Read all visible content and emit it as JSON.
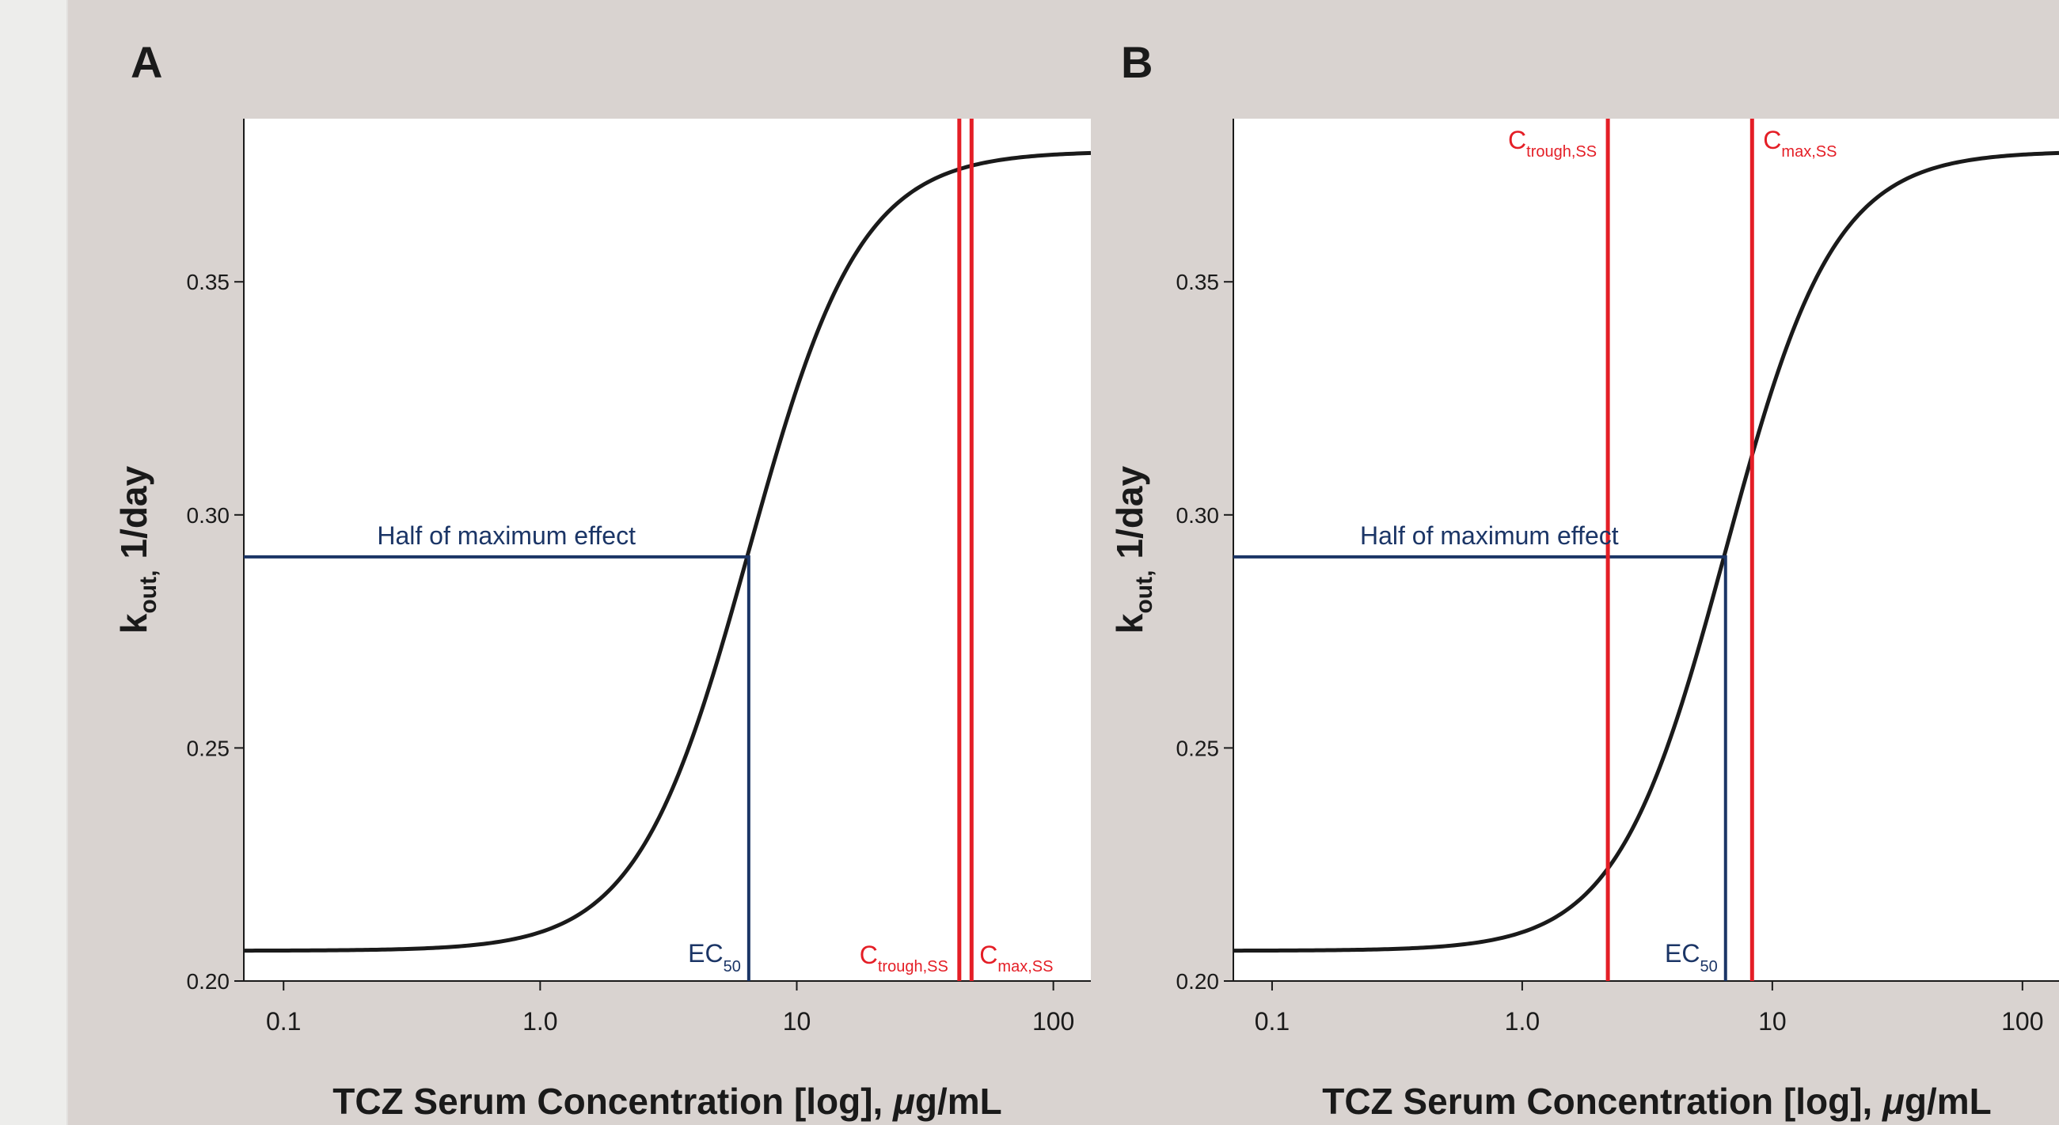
{
  "colors": {
    "curve": "#1a1a1a",
    "ec50_line": "#1b3566",
    "ss_lines": "#e41e26",
    "panel_background": "#d9d3d0"
  },
  "chart_data": [
    {
      "type": "line",
      "panel_label": "A",
      "title": "",
      "xlabel_prefix": "TCZ Serum Concentration [log], ",
      "xlabel_unit_mu": "μ",
      "xlabel_unit_rest": "g/mL",
      "ylabel_main": "k",
      "ylabel_sub": "out,",
      "ylabel_rest": "1/day",
      "x_scale": "log",
      "xlim": [
        0.07,
        140
      ],
      "ylim": [
        0.2,
        0.385
      ],
      "x_ticks": [
        0.1,
        1.0,
        10,
        100
      ],
      "x_tick_labels": [
        "0.1",
        "1.0",
        "10",
        "100"
      ],
      "y_ticks": [
        0.2,
        0.25,
        0.3,
        0.35
      ],
      "y_tick_labels": [
        "0.20",
        "0.25",
        "0.30",
        "0.35"
      ],
      "curve": {
        "E0": 0.2065,
        "Emax": 0.378,
        "EC50": 6.5,
        "hill": 2.0
      },
      "half_max_label": "Half of maximum effect",
      "ec50_label_main": "EC",
      "ec50_label_sub": "50",
      "ec50_value": 6.5,
      "half_max_y": 0.291,
      "ss_lines": [
        {
          "x": 43,
          "label_main": "C",
          "label_sub": "trough,SS",
          "label_pos": "bottom-left"
        },
        {
          "x": 48,
          "label_main": "C",
          "label_sub": "max,SS",
          "label_pos": "bottom-right"
        }
      ]
    },
    {
      "type": "line",
      "panel_label": "B",
      "title": "",
      "xlabel_prefix": "TCZ Serum Concentration [log], ",
      "xlabel_unit_mu": "μ",
      "xlabel_unit_rest": "g/mL",
      "ylabel_main": "k",
      "ylabel_sub": "out,",
      "ylabel_rest": "1/day",
      "x_scale": "log",
      "xlim": [
        0.07,
        140
      ],
      "ylim": [
        0.2,
        0.385
      ],
      "x_ticks": [
        0.1,
        1.0,
        10,
        100
      ],
      "x_tick_labels": [
        "0.1",
        "1.0",
        "10",
        "100"
      ],
      "y_ticks": [
        0.2,
        0.25,
        0.3,
        0.35
      ],
      "y_tick_labels": [
        "0.20",
        "0.25",
        "0.30",
        "0.35"
      ],
      "curve": {
        "E0": 0.2065,
        "Emax": 0.378,
        "EC50": 6.5,
        "hill": 2.0
      },
      "half_max_label": "Half of maximum effect",
      "ec50_label_main": "EC",
      "ec50_label_sub": "50",
      "ec50_value": 6.5,
      "half_max_y": 0.291,
      "ss_lines": [
        {
          "x": 2.2,
          "label_main": "C",
          "label_sub": "trough,SS",
          "label_pos": "top-left"
        },
        {
          "x": 8.3,
          "label_main": "C",
          "label_sub": "max,SS",
          "label_pos": "top-right"
        }
      ]
    }
  ]
}
